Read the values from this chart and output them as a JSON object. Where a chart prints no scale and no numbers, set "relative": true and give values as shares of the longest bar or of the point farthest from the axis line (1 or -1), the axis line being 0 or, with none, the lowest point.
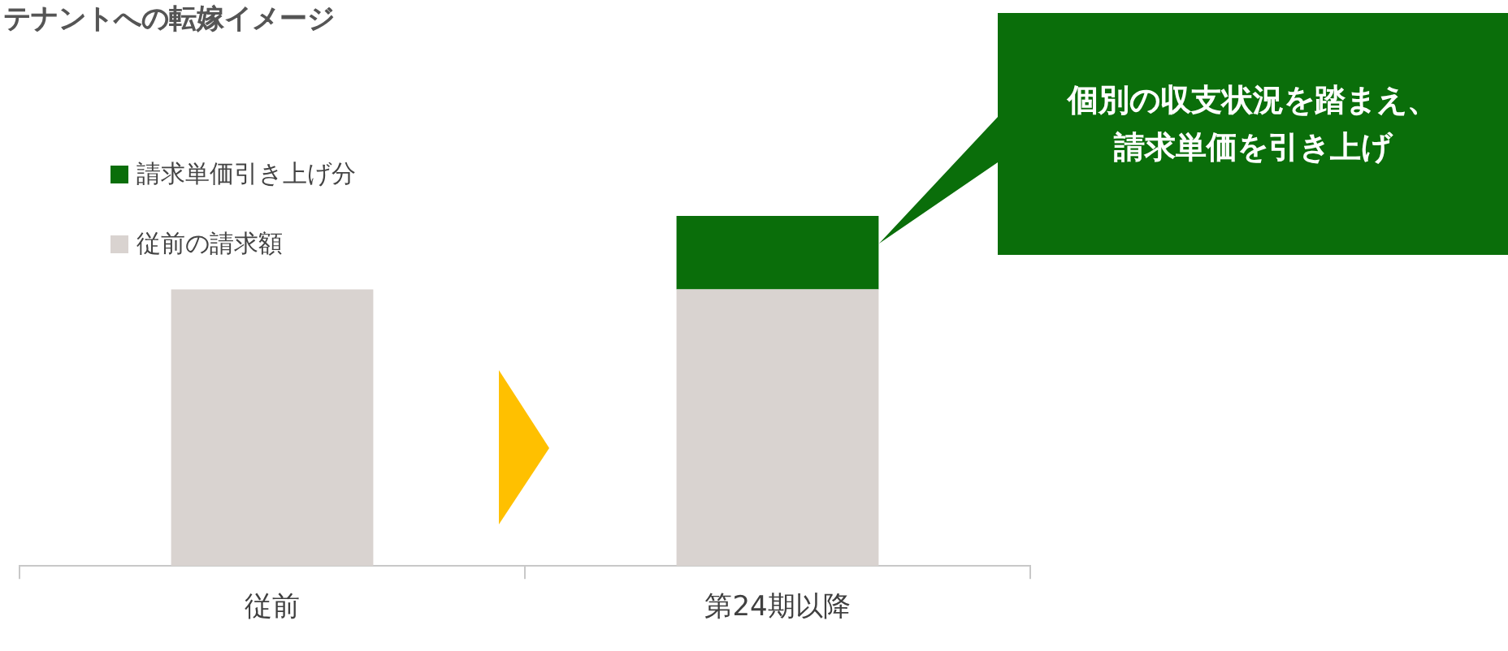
{
  "chart_data": {
    "type": "bar",
    "title": "テナントへの転嫁イメージ",
    "categories": [
      "従前",
      "第24期以降"
    ],
    "relative": true,
    "stacked": true,
    "legend": "top left",
    "grid": false,
    "series": [
      {
        "name": "従前の請求額",
        "color": "#d9d3d0",
        "values": [
          0.79,
          0.79
        ]
      },
      {
        "name": "請求単価引き上げ分",
        "color": "#0a6e0a",
        "values": [
          null,
          0.21
        ]
      }
    ],
    "annotations": [
      "個別の収支状況を踏まえ、請求単価を引き上げ"
    ]
  }
}
